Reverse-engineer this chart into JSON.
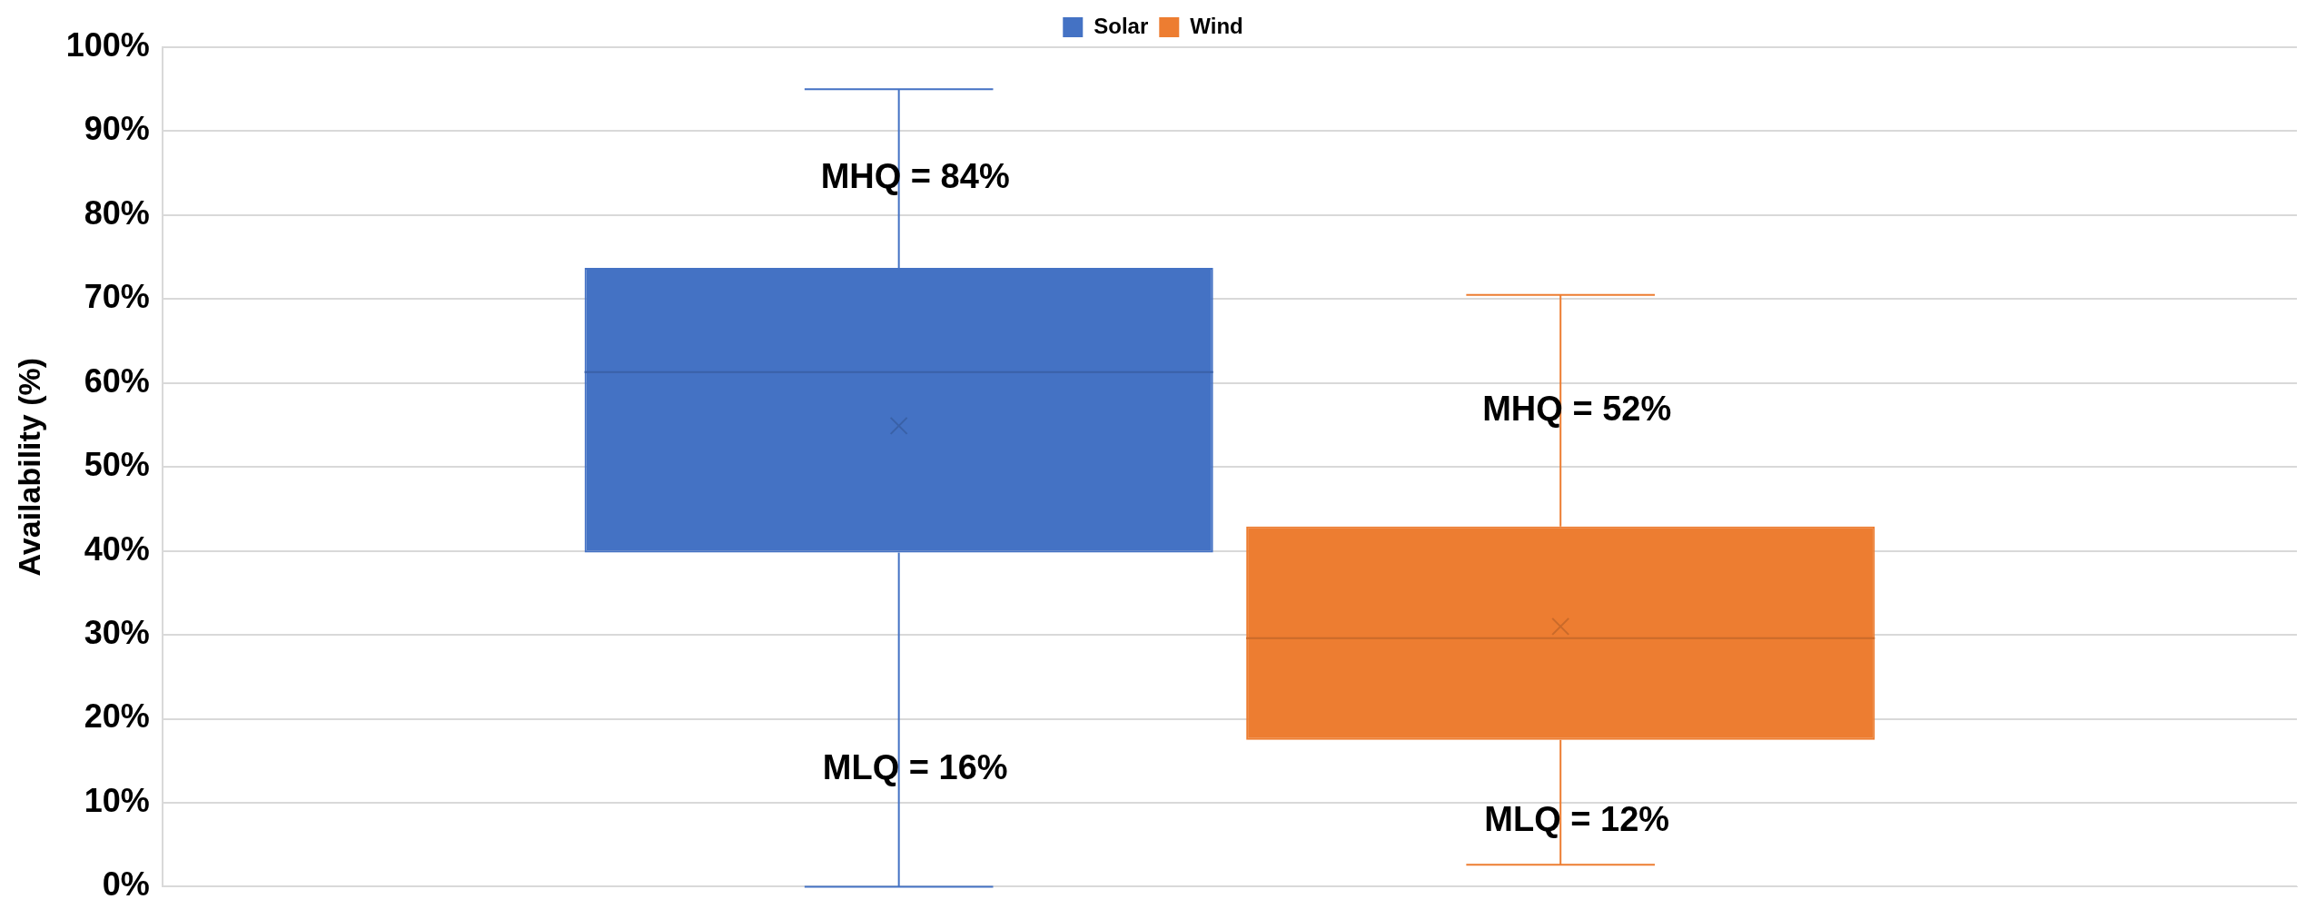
{
  "chart_data": {
    "type": "box",
    "ylabel": "Availability (%)",
    "categories": [
      null
    ],
    "series": [
      {
        "name": "Solar",
        "color": "#4472c4",
        "boxes": [
          {
            "low": 0,
            "q1": 39.8,
            "median": 61.3,
            "q3": 73.7,
            "high": 95.0,
            "mean": 54.9
          }
        ]
      },
      {
        "name": "Wind",
        "color": "#ed7d31",
        "boxes": [
          {
            "low": 2.6,
            "q1": 17.5,
            "median": 29.6,
            "q3": 42.9,
            "high": 70.5,
            "mean": 31.0
          }
        ]
      }
    ],
    "ylim": [
      0,
      100
    ],
    "yticks": [
      {
        "value": 0,
        "label": "0%"
      },
      {
        "value": 10,
        "label": "10%"
      },
      {
        "value": 20,
        "label": "20%"
      },
      {
        "value": 30,
        "label": "30%"
      },
      {
        "value": 40,
        "label": "40%"
      },
      {
        "value": 50,
        "label": "50%"
      },
      {
        "value": 60,
        "label": "60%"
      },
      {
        "value": 70,
        "label": "70%"
      },
      {
        "value": 80,
        "label": "80%"
      },
      {
        "value": 90,
        "label": "90%"
      },
      {
        "value": 100,
        "label": "100%"
      }
    ],
    "annotations": [
      "MHQ = 84%",
      "MLQ = 16%",
      "MHQ = 52%",
      "MLQ = 12%"
    ],
    "grid": "y",
    "legend": "top",
    "tick_labels": "y"
  }
}
